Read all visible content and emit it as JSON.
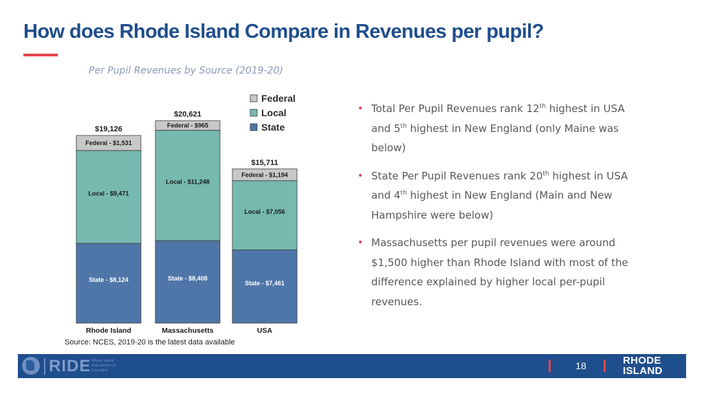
{
  "header": {
    "title": "How does Rhode Island Compare in Revenues per pupil?",
    "subtitle": "Per Pupil Revenues by Source (2019-20)"
  },
  "colors": {
    "title": "#1f4e8c",
    "accent": "#e0474c",
    "federal": "#c8c8c8",
    "local": "#76b9af",
    "state": "#4f76a8",
    "footer": "#1f4e8c"
  },
  "chart_data": {
    "type": "bar",
    "stacked": true,
    "categories": [
      "Rhode Island",
      "Massachusetts",
      "USA"
    ],
    "series": [
      {
        "name": "State",
        "values": [
          8124,
          8408,
          7461
        ],
        "labels": [
          "State - $8,124",
          "State - $8,408",
          "State - $7,461"
        ]
      },
      {
        "name": "Local",
        "values": [
          9471,
          11248,
          7056
        ],
        "labels": [
          "Local - $9,471",
          "Local - $11,248",
          "Local - $7,056"
        ]
      },
      {
        "name": "Federal",
        "values": [
          1531,
          965,
          1194
        ],
        "labels": [
          "Federal - $1,531",
          "Federal - $965",
          "Federal - $1,194"
        ]
      }
    ],
    "totals": [
      "$19,126",
      "$20,621",
      "$15,711"
    ],
    "legend": [
      "Federal",
      "Local",
      "State"
    ],
    "legend_position": "top-right",
    "title": "Per Pupil Revenues by Source (2019-20)",
    "ylim": [
      0,
      22000
    ],
    "grid": false
  },
  "bullets": [
    {
      "parts": [
        "Total Per Pupil Revenues rank 12",
        "th",
        " highest in USA and 5",
        "th",
        " highest in New England (only Maine was below)"
      ]
    },
    {
      "parts": [
        "State Per Pupil Revenues rank 20",
        "th",
        " highest in USA and 4",
        "th",
        " highest in New England (Main and New Hampshire were below)"
      ]
    },
    {
      "parts": [
        "Massachusetts per pupil revenues were around $1,500 higher than Rhode Island with most of the difference explained by higher local per-pupil revenues."
      ]
    }
  ],
  "source": "Source: NCES, 2019-20 is the latest data available",
  "footer": {
    "logo_text": "RIDE",
    "logo_subtext": "Rhode Island Department of Education",
    "page_number": "18",
    "brand_line1": "RHODE",
    "brand_line2": "ISLAND"
  }
}
